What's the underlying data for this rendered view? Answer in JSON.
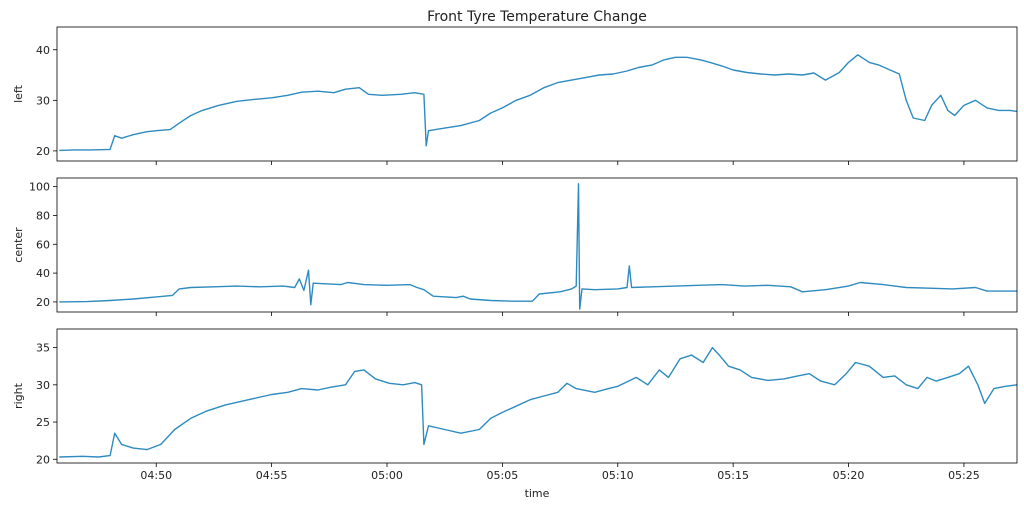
{
  "chart_data": {
    "type": "line",
    "title": "Front Tyre Temperature Change",
    "xlabel": "time",
    "x_ticks": [
      "04:50",
      "04:55",
      "05:00",
      "05:05",
      "05:10",
      "05:15",
      "05:20",
      "05:25"
    ],
    "x_tick_minutes": [
      50,
      55,
      60,
      65,
      70,
      75,
      80,
      85
    ],
    "xlim_minutes": [
      45.7,
      87.3
    ],
    "color": "#2e8bc0",
    "grid": false,
    "panels": [
      {
        "ylabel": "left",
        "ylim": [
          18,
          44.5
        ],
        "yticks": [
          20,
          30,
          40
        ],
        "points": [
          [
            45.8,
            20.1
          ],
          [
            46.5,
            20.2
          ],
          [
            47.2,
            20.2
          ],
          [
            48.0,
            20.3
          ],
          [
            48.2,
            23.0
          ],
          [
            48.5,
            22.5
          ],
          [
            49.0,
            23.2
          ],
          [
            49.6,
            23.8
          ],
          [
            50.0,
            24.0
          ],
          [
            50.6,
            24.2
          ],
          [
            51.0,
            25.5
          ],
          [
            51.5,
            27.0
          ],
          [
            52.0,
            28.0
          ],
          [
            52.7,
            29.0
          ],
          [
            53.5,
            29.8
          ],
          [
            54.3,
            30.2
          ],
          [
            55.0,
            30.5
          ],
          [
            55.7,
            31.0
          ],
          [
            56.3,
            31.6
          ],
          [
            57.0,
            31.8
          ],
          [
            57.7,
            31.5
          ],
          [
            58.2,
            32.2
          ],
          [
            58.8,
            32.5
          ],
          [
            59.2,
            31.2
          ],
          [
            59.8,
            31.0
          ],
          [
            60.6,
            31.2
          ],
          [
            61.2,
            31.5
          ],
          [
            61.6,
            31.2
          ],
          [
            61.7,
            21.0
          ],
          [
            61.8,
            24.0
          ],
          [
            62.5,
            24.5
          ],
          [
            63.2,
            25.0
          ],
          [
            64.0,
            26.0
          ],
          [
            64.5,
            27.5
          ],
          [
            65.0,
            28.5
          ],
          [
            65.6,
            30.0
          ],
          [
            66.2,
            31.0
          ],
          [
            66.8,
            32.5
          ],
          [
            67.4,
            33.5
          ],
          [
            68.0,
            34.0
          ],
          [
            68.6,
            34.5
          ],
          [
            69.2,
            35.0
          ],
          [
            69.8,
            35.2
          ],
          [
            70.4,
            35.8
          ],
          [
            70.9,
            36.5
          ],
          [
            71.5,
            37.0
          ],
          [
            72.0,
            38.0
          ],
          [
            72.5,
            38.5
          ],
          [
            73.0,
            38.5
          ],
          [
            73.6,
            38.0
          ],
          [
            74.0,
            37.5
          ],
          [
            74.5,
            36.8
          ],
          [
            75.0,
            36.0
          ],
          [
            75.6,
            35.5
          ],
          [
            76.2,
            35.2
          ],
          [
            76.8,
            35.0
          ],
          [
            77.4,
            35.2
          ],
          [
            78.0,
            35.0
          ],
          [
            78.5,
            35.4
          ],
          [
            79.0,
            34.0
          ],
          [
            79.6,
            35.5
          ],
          [
            80.0,
            37.5
          ],
          [
            80.4,
            39.0
          ],
          [
            80.9,
            37.5
          ],
          [
            81.3,
            37.0
          ],
          [
            81.8,
            36.0
          ],
          [
            82.2,
            35.2
          ],
          [
            82.5,
            30.0
          ],
          [
            82.8,
            26.5
          ],
          [
            83.3,
            26.0
          ],
          [
            83.6,
            29.0
          ],
          [
            84.0,
            31.0
          ],
          [
            84.3,
            28.0
          ],
          [
            84.6,
            27.0
          ],
          [
            85.0,
            29.0
          ],
          [
            85.5,
            30.0
          ],
          [
            86.0,
            28.5
          ],
          [
            86.5,
            28.0
          ],
          [
            87.0,
            28.0
          ],
          [
            87.3,
            27.8
          ]
        ]
      },
      {
        "ylabel": "center",
        "ylim": [
          13,
          106
        ],
        "yticks": [
          20,
          40,
          60,
          80,
          100
        ],
        "points": [
          [
            45.8,
            20
          ],
          [
            47.0,
            20.2
          ],
          [
            48.0,
            21
          ],
          [
            49.0,
            22
          ],
          [
            50.0,
            23.5
          ],
          [
            50.7,
            24.5
          ],
          [
            51.0,
            29
          ],
          [
            51.5,
            30
          ],
          [
            52.5,
            30.5
          ],
          [
            53.5,
            31
          ],
          [
            54.5,
            30.5
          ],
          [
            55.5,
            31
          ],
          [
            56.0,
            30
          ],
          [
            56.2,
            36
          ],
          [
            56.4,
            28
          ],
          [
            56.6,
            42
          ],
          [
            56.7,
            18
          ],
          [
            56.8,
            33
          ],
          [
            58.0,
            32
          ],
          [
            58.3,
            33.5
          ],
          [
            59.0,
            32
          ],
          [
            60.0,
            31.5
          ],
          [
            61.0,
            32
          ],
          [
            61.3,
            30
          ],
          [
            61.6,
            28.5
          ],
          [
            62.0,
            24
          ],
          [
            63.0,
            23
          ],
          [
            63.3,
            24
          ],
          [
            63.6,
            22
          ],
          [
            64.5,
            21
          ],
          [
            65.5,
            20.5
          ],
          [
            66.3,
            20.5
          ],
          [
            66.6,
            25.5
          ],
          [
            67.5,
            27
          ],
          [
            68.0,
            29
          ],
          [
            68.2,
            31
          ],
          [
            68.3,
            102
          ],
          [
            68.35,
            15
          ],
          [
            68.45,
            29
          ],
          [
            69.0,
            28.5
          ],
          [
            70.0,
            29
          ],
          [
            70.4,
            30
          ],
          [
            70.5,
            45
          ],
          [
            70.6,
            30
          ],
          [
            71.5,
            30.5
          ],
          [
            72.5,
            31
          ],
          [
            73.5,
            31.5
          ],
          [
            74.5,
            32
          ],
          [
            75.5,
            31
          ],
          [
            76.5,
            31.5
          ],
          [
            77.5,
            30.5
          ],
          [
            78.0,
            27
          ],
          [
            79.0,
            28.5
          ],
          [
            80.0,
            31
          ],
          [
            80.5,
            33.5
          ],
          [
            81.5,
            32
          ],
          [
            82.5,
            30
          ],
          [
            83.5,
            29.5
          ],
          [
            84.5,
            29
          ],
          [
            85.5,
            30
          ],
          [
            86.0,
            27.5
          ],
          [
            87.3,
            27.5
          ]
        ]
      },
      {
        "ylabel": "right",
        "ylim": [
          19.5,
          37.5
        ],
        "yticks": [
          20,
          25,
          30,
          35
        ],
        "points": [
          [
            45.8,
            20.3
          ],
          [
            46.8,
            20.4
          ],
          [
            47.5,
            20.3
          ],
          [
            48.0,
            20.5
          ],
          [
            48.2,
            23.5
          ],
          [
            48.5,
            22.0
          ],
          [
            49.0,
            21.5
          ],
          [
            49.6,
            21.3
          ],
          [
            50.2,
            22.0
          ],
          [
            50.8,
            24.0
          ],
          [
            51.5,
            25.5
          ],
          [
            52.2,
            26.5
          ],
          [
            53.0,
            27.3
          ],
          [
            54.0,
            28.0
          ],
          [
            55.0,
            28.7
          ],
          [
            55.7,
            29.0
          ],
          [
            56.3,
            29.5
          ],
          [
            57.0,
            29.3
          ],
          [
            57.6,
            29.7
          ],
          [
            58.2,
            30.0
          ],
          [
            58.6,
            31.8
          ],
          [
            59.0,
            32.0
          ],
          [
            59.5,
            30.8
          ],
          [
            60.1,
            30.2
          ],
          [
            60.7,
            30.0
          ],
          [
            61.2,
            30.3
          ],
          [
            61.5,
            30.0
          ],
          [
            61.6,
            22.0
          ],
          [
            61.8,
            24.5
          ],
          [
            62.5,
            24.0
          ],
          [
            63.2,
            23.5
          ],
          [
            64.0,
            24.0
          ],
          [
            64.5,
            25.5
          ],
          [
            65.0,
            26.3
          ],
          [
            65.5,
            27.0
          ],
          [
            66.2,
            28.0
          ],
          [
            66.8,
            28.5
          ],
          [
            67.4,
            29.0
          ],
          [
            67.8,
            30.2
          ],
          [
            68.2,
            29.5
          ],
          [
            69.0,
            29.0
          ],
          [
            69.6,
            29.5
          ],
          [
            70.0,
            29.8
          ],
          [
            70.4,
            30.4
          ],
          [
            70.8,
            31.0
          ],
          [
            71.3,
            30.0
          ],
          [
            71.8,
            32.0
          ],
          [
            72.2,
            31.0
          ],
          [
            72.7,
            33.5
          ],
          [
            73.2,
            34.0
          ],
          [
            73.7,
            33.0
          ],
          [
            74.1,
            35.0
          ],
          [
            74.4,
            34.0
          ],
          [
            74.8,
            32.5
          ],
          [
            75.3,
            32.0
          ],
          [
            75.8,
            31.0
          ],
          [
            76.5,
            30.6
          ],
          [
            77.2,
            30.8
          ],
          [
            77.8,
            31.2
          ],
          [
            78.3,
            31.5
          ],
          [
            78.8,
            30.5
          ],
          [
            79.4,
            30.0
          ],
          [
            79.9,
            31.5
          ],
          [
            80.3,
            33.0
          ],
          [
            80.9,
            32.5
          ],
          [
            81.5,
            31.0
          ],
          [
            82.0,
            31.2
          ],
          [
            82.5,
            30.0
          ],
          [
            83.0,
            29.5
          ],
          [
            83.4,
            31.0
          ],
          [
            83.8,
            30.5
          ],
          [
            84.3,
            31.0
          ],
          [
            84.8,
            31.5
          ],
          [
            85.2,
            32.5
          ],
          [
            85.6,
            30.0
          ],
          [
            85.9,
            27.5
          ],
          [
            86.3,
            29.5
          ],
          [
            86.8,
            29.8
          ],
          [
            87.3,
            30.0
          ]
        ]
      }
    ]
  }
}
